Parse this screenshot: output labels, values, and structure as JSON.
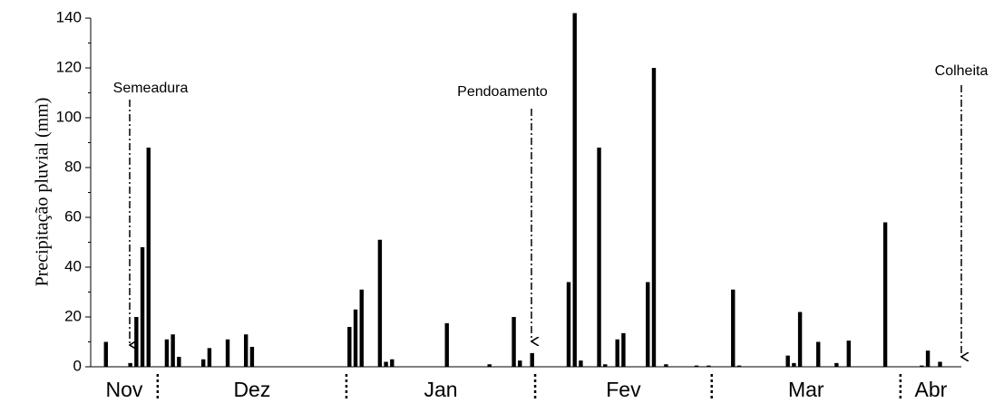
{
  "chart_data": {
    "type": "bar",
    "y_label": "Precipitação pluvial (mm)",
    "color": "#000000",
    "ylim": [
      0,
      140
    ],
    "yticks": [
      0,
      20,
      40,
      60,
      80,
      100,
      120,
      140
    ],
    "yminorticks": [
      10,
      30,
      50,
      70,
      90,
      110,
      130
    ],
    "months": [
      {
        "name": "Nov",
        "days": 11
      },
      {
        "name": "Dez",
        "days": 31
      },
      {
        "name": "Jan",
        "days": 31
      },
      {
        "name": "Fev",
        "days": 29
      },
      {
        "name": "Mar",
        "days": 31
      },
      {
        "name": "Abr",
        "days": 10
      }
    ],
    "annotations": [
      {
        "text": "Semeadura"
      },
      {
        "text": "Pendoamento"
      },
      {
        "text": "Colheita"
      }
    ],
    "categories": [
      null,
      null,
      null,
      null,
      null,
      null,
      null,
      null,
      null,
      null,
      null,
      null,
      null,
      null,
      null,
      null,
      null,
      null,
      null,
      null,
      null,
      null,
      null,
      null,
      null,
      null,
      null,
      null,
      null,
      null,
      null,
      null,
      null,
      null,
      null,
      null,
      null,
      null,
      null,
      null,
      null,
      null,
      null,
      null,
      null,
      null,
      null,
      null,
      null,
      null,
      null,
      null,
      null,
      null,
      null,
      null,
      null,
      null,
      null,
      null,
      null,
      null,
      null,
      null,
      null,
      null,
      null,
      null,
      null,
      null,
      null,
      null,
      null,
      null,
      null,
      null,
      null,
      null,
      null,
      null,
      null,
      null,
      null,
      null,
      null,
      null,
      null,
      null,
      null,
      null,
      null,
      null,
      null,
      null,
      null,
      null,
      null,
      null,
      null,
      null,
      null,
      null,
      null,
      null,
      null,
      null,
      null,
      null,
      null,
      null,
      null,
      null,
      null,
      null,
      null,
      null,
      null,
      null,
      null,
      null,
      null,
      null,
      null,
      null,
      null,
      null,
      null,
      null,
      null,
      null,
      null,
      null,
      null,
      null,
      null,
      null,
      null,
      null,
      null,
      null,
      null,
      null,
      null
    ],
    "values": [
      0,
      0,
      10,
      0,
      0,
      0,
      1.5,
      20,
      48,
      88,
      0,
      0,
      11,
      13,
      4,
      0,
      0,
      0,
      3,
      7.5,
      0,
      0,
      11,
      0,
      0,
      13,
      8,
      0,
      0,
      0,
      0,
      0,
      0,
      0,
      0,
      0,
      0,
      0,
      0,
      0,
      0,
      0,
      16,
      23,
      31,
      0,
      0,
      51,
      2,
      3,
      0,
      0,
      0,
      0,
      0,
      0,
      0,
      0,
      17.5,
      0,
      0,
      0,
      0,
      0,
      0,
      1,
      0,
      0,
      0,
      20,
      2.5,
      0,
      5.5,
      0,
      0,
      0,
      0,
      0,
      34,
      142,
      2.5,
      0,
      0,
      88,
      1,
      0,
      11,
      13.5,
      0,
      0,
      0,
      34,
      120,
      0,
      1,
      0,
      0,
      0,
      0,
      0.5,
      0,
      0.5,
      0,
      0,
      0,
      31,
      0.5,
      0,
      0,
      0,
      0,
      0,
      0,
      0,
      4.5,
      1.5,
      22,
      0,
      0,
      10,
      0,
      0,
      1.5,
      0,
      10.5,
      0,
      0,
      0,
      0,
      0,
      58,
      0,
      0,
      0,
      0,
      0,
      0.5,
      6.5,
      0,
      2,
      0,
      0,
      0
    ]
  }
}
